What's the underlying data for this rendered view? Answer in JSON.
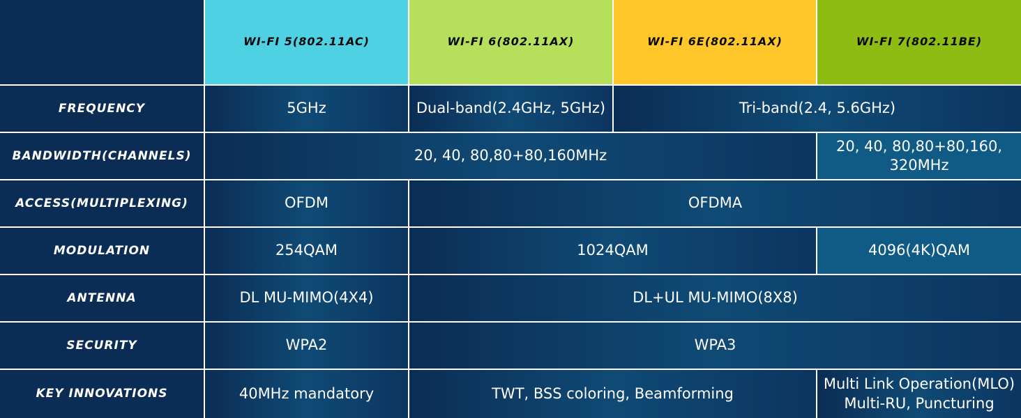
{
  "header": {
    "columns": [
      "WI-FI 5(802.11AC)",
      "WI-FI 6(802.11AX)",
      "WI-FI 6E(802.11AX)",
      "WI-FI 7(802.11BE)"
    ]
  },
  "rows": [
    {
      "label": "FREQUENCY",
      "cells": [
        "5GHz",
        "Dual-band(2.4GHz, 5GHz)",
        "Tri-band(2.4, 5.6GHz)"
      ]
    },
    {
      "label": "BANDWIDTH(CHANNELS)",
      "cells": [
        "20, 40, 80,80+80,160MHz",
        "20, 40, 80,80+80,160, 320MHz"
      ]
    },
    {
      "label": "ACCESS(MULTIPLEXING)",
      "cells": [
        "OFDM",
        "OFDMA"
      ]
    },
    {
      "label": "MODULATION",
      "cells": [
        "254QAM",
        "1024QAM",
        "4096(4K)QAM"
      ]
    },
    {
      "label": "ANTENNA",
      "cells": [
        "DL MU-MIMO(4X4)",
        "DL+UL MU-MIMO(8X8)"
      ]
    },
    {
      "label": "SECURITY",
      "cells": [
        "WPA2",
        "WPA3"
      ]
    },
    {
      "label": "KEY INNOVATIONS",
      "cells": [
        "40MHz mandatory",
        "TWT, BSS coloring, Beamforming",
        "Multi Link Operation(MLO)\nMulti-RU, Puncturing"
      ]
    }
  ]
}
